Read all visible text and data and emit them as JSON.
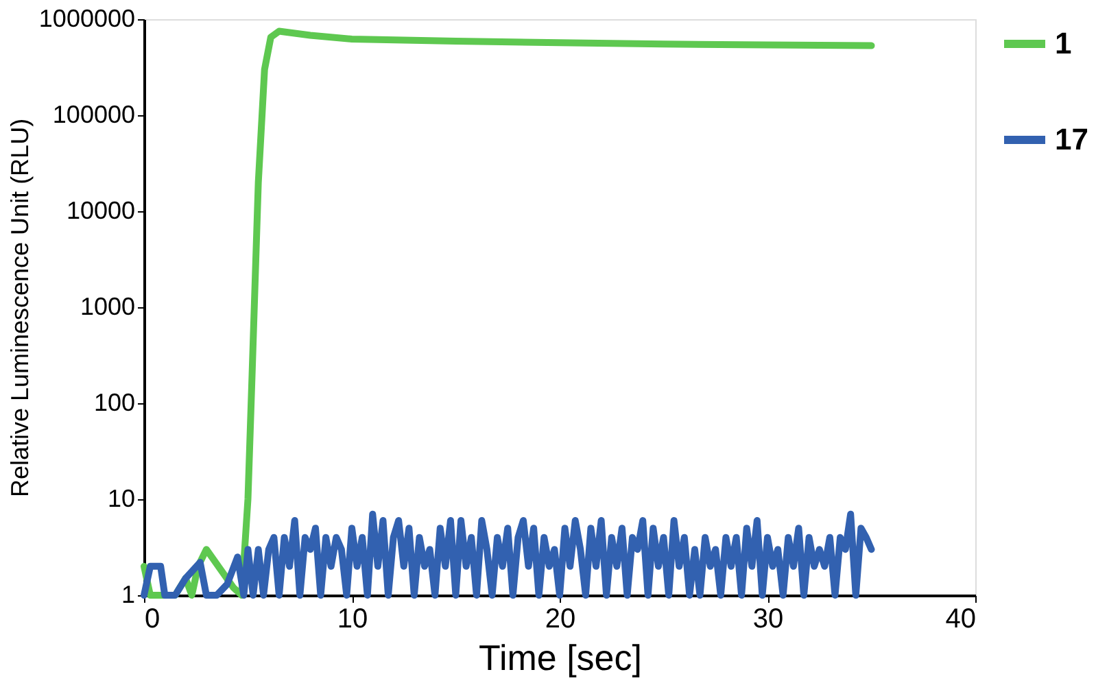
{
  "chart_data": {
    "type": "line",
    "xlabel": "Time [sec]",
    "ylabel": "Relative Luminescence Unit (RLU)",
    "log": "y",
    "xlim": [
      0,
      40
    ],
    "xticks": [
      0,
      10,
      20,
      30,
      40
    ],
    "ylim": [
      1,
      1000000
    ],
    "yticks": [
      1,
      10,
      100,
      1000,
      10000,
      100000,
      1000000
    ],
    "grid": false,
    "legend": "right",
    "marker": "none",
    "line_style": "solid",
    "series": [
      {
        "name": "1",
        "color": "#5ec850",
        "x": [
          0,
          0.3,
          1.5,
          2.0,
          2.3,
          2.6,
          3.0,
          4.3,
          4.7,
          5.0,
          5.2,
          5.5,
          5.8,
          6.1,
          6.5,
          8,
          10,
          15,
          20,
          25,
          30,
          35
        ],
        "values": [
          2,
          1,
          1,
          1.5,
          1,
          2,
          3,
          1.2,
          1,
          10,
          200,
          20000,
          300000,
          650000,
          750000,
          680000,
          620000,
          590000,
          570000,
          550000,
          540000,
          530000
        ]
      },
      {
        "name": "17",
        "color": "#3261b0",
        "x": [
          0,
          0.3,
          0.8,
          1,
          1.5,
          2,
          2.7,
          3,
          3.5,
          4,
          4.5,
          4.8,
          5.0,
          5.25,
          5.5,
          5.75,
          6,
          6.25,
          6.5,
          6.75,
          7,
          7.25,
          7.5,
          7.75,
          8,
          8.25,
          8.5,
          8.75,
          9,
          9.25,
          9.5,
          9.75,
          10,
          10.25,
          10.5,
          10.75,
          11,
          11.25,
          11.5,
          11.75,
          12,
          12.25,
          12.5,
          12.75,
          13,
          13.25,
          13.5,
          13.75,
          14,
          14.25,
          14.5,
          14.75,
          15,
          15.25,
          15.5,
          15.75,
          16,
          16.25,
          16.5,
          16.75,
          17,
          17.25,
          17.5,
          17.75,
          18,
          18.25,
          18.5,
          18.75,
          19,
          19.25,
          19.5,
          19.75,
          20,
          20.25,
          20.5,
          20.75,
          21,
          21.25,
          21.5,
          21.75,
          22,
          22.25,
          22.5,
          22.75,
          23,
          23.25,
          23.5,
          23.75,
          24,
          24.25,
          24.5,
          24.75,
          25,
          25.25,
          25.5,
          25.75,
          26,
          26.25,
          26.5,
          26.75,
          27,
          27.25,
          27.5,
          27.75,
          28,
          28.25,
          28.5,
          28.75,
          29,
          29.25,
          29.5,
          29.75,
          30,
          30.25,
          30.5,
          30.75,
          31,
          31.25,
          31.5,
          31.75,
          32,
          32.25,
          32.5,
          32.75,
          33,
          33.25,
          33.5,
          33.75,
          34,
          34.25,
          34.5,
          34.75,
          35
        ],
        "values": [
          1,
          2,
          2,
          1,
          1,
          1.5,
          2.2,
          1,
          1,
          1.3,
          2.5,
          1,
          3,
          1,
          3,
          1,
          3,
          4,
          1,
          4,
          2,
          6,
          1,
          4,
          3,
          5,
          1,
          4,
          2,
          4,
          3,
          1,
          5,
          2,
          4,
          1,
          7,
          2,
          6,
          1,
          4,
          6,
          2,
          5,
          1,
          4,
          2,
          3,
          1,
          5,
          2,
          6,
          1,
          6,
          2,
          4,
          1,
          6,
          3,
          1,
          4,
          2,
          5,
          1,
          4,
          6,
          2,
          5,
          1,
          4,
          2,
          3,
          1,
          5,
          2,
          6,
          3,
          1,
          5,
          2,
          6,
          1,
          4,
          2,
          5,
          1,
          4,
          3,
          6,
          1,
          5,
          2,
          4,
          1,
          6,
          2,
          4,
          1,
          3,
          1,
          4,
          2,
          3,
          1,
          4,
          2,
          4,
          1,
          5,
          2,
          6,
          1,
          4,
          2,
          3,
          1,
          4,
          2,
          5,
          1,
          4,
          2,
          3,
          2,
          4,
          1,
          4,
          3,
          7,
          1,
          5,
          4,
          3
        ]
      }
    ]
  }
}
